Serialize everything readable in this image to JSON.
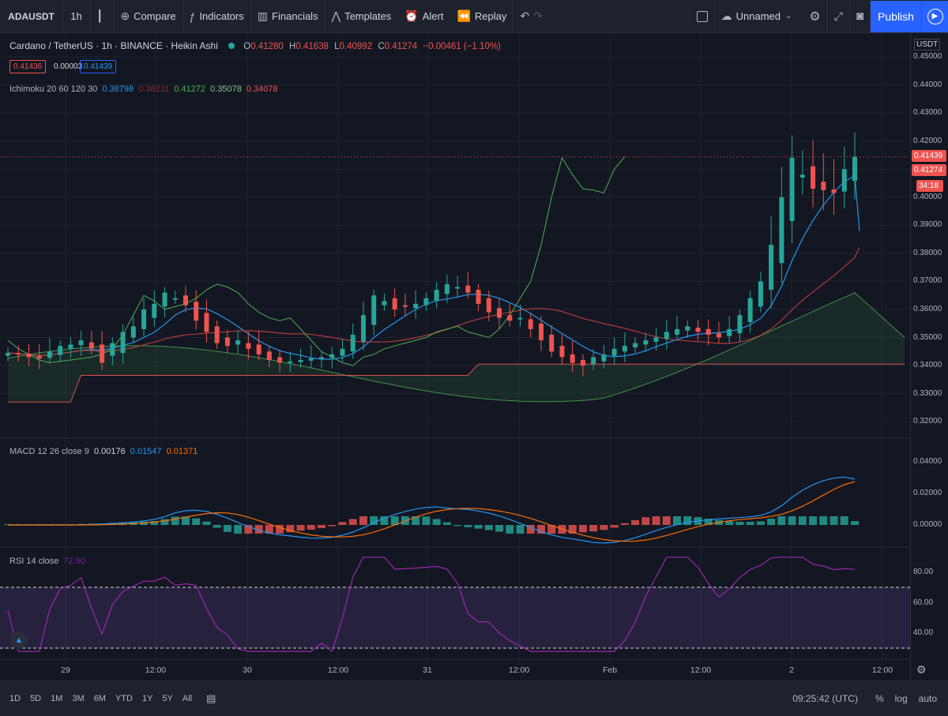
{
  "toolbar": {
    "symbol": "ADAUSDT",
    "interval": "1h",
    "compare": "Compare",
    "indicators": "Indicators",
    "financials": "Financials",
    "templates": "Templates",
    "alert": "Alert",
    "replay": "Replay",
    "layout_name": "Unnamed",
    "publish": "Publish"
  },
  "header": {
    "title": "Cardano / TetherUS · 1h · BINANCE · Heikin Ashi",
    "open_label": "O",
    "open": "0.41280",
    "high_label": "H",
    "high": "0.41638",
    "low_label": "L",
    "low": "0.40992",
    "close_label": "C",
    "close": "0.41274",
    "change": "−0.00461 (−1.10%)",
    "sell_price": "0.41436",
    "spread": "0.00003",
    "buy_price": "0.41439"
  },
  "ichimoku": {
    "label": "Ichimoku 20 60 120 30",
    "v1": "0.38798",
    "v2": "0.38211",
    "v3": "0.41272",
    "v4": "0.35078",
    "v5": "0.34078"
  },
  "macd": {
    "label": "MACD 12 26 close 9",
    "hist": "0.00176",
    "macd": "0.01547",
    "signal": "0.01371"
  },
  "rsi": {
    "label": "RSI 14 close",
    "value": "72.90"
  },
  "price_axis": {
    "currency": "USDT",
    "ticks": [
      "0.45000",
      "0.44000",
      "0.43000",
      "0.42000",
      "0.41000",
      "0.40000",
      "0.39000",
      "0.38000",
      "0.37000",
      "0.36000",
      "0.35000",
      "0.34000",
      "0.33000",
      "0.32000"
    ],
    "tag_buy": "0.41439",
    "tag_close": "0.41274",
    "tag_countdown": "34:18",
    "macd_ticks": [
      "0.04000",
      "0.02000",
      "0.00000"
    ],
    "rsi_ticks": [
      "80.00",
      "60.00",
      "40.00"
    ]
  },
  "time_axis": [
    "29",
    "12:00",
    "30",
    "12:00",
    "31",
    "12:00",
    "Feb",
    "12:00",
    "2",
    "12:00"
  ],
  "bottom": {
    "ranges": [
      "1D",
      "5D",
      "1M",
      "3M",
      "6M",
      "YTD",
      "1Y",
      "5Y",
      "All"
    ],
    "clock": "09:25:42 (UTC)",
    "percent": "%",
    "log": "log",
    "auto": "auto"
  },
  "colors": {
    "up": "#26a69a",
    "down": "#ef5350",
    "tenkan": "#2196f3",
    "kijun": "#ef5350",
    "lagging": "#4caf50",
    "macd_line": "#2196f3",
    "signal_line": "#ff6d00",
    "rsi": "#9c27b0",
    "accent": "#2962ff"
  },
  "chart_data": {
    "type": "candlestick",
    "symbol": "ADAUSDT",
    "timeframe": "1h",
    "ylim": [
      0.32,
      0.45
    ],
    "candles_close": [
      0.3445,
      0.344,
      0.343,
      0.3425,
      0.345,
      0.347,
      0.3475,
      0.349,
      0.346,
      0.341,
      0.348,
      0.352,
      0.354,
      0.36,
      0.362,
      0.366,
      0.364,
      0.3615,
      0.356,
      0.352,
      0.348,
      0.347,
      0.349,
      0.346,
      0.344,
      0.342,
      0.341,
      0.3415,
      0.342,
      0.3425,
      0.343,
      0.344,
      0.346,
      0.351,
      0.358,
      0.365,
      0.363,
      0.36,
      0.361,
      0.362,
      0.364,
      0.367,
      0.369,
      0.368,
      0.366,
      0.362,
      0.359,
      0.357,
      0.356,
      0.357,
      0.353,
      0.349,
      0.345,
      0.343,
      0.341,
      0.34,
      0.343,
      0.344,
      0.346,
      0.347,
      0.348,
      0.349,
      0.35,
      0.352,
      0.353,
      0.354,
      0.352,
      0.351,
      0.35,
      0.353,
      0.358,
      0.364,
      0.37,
      0.383,
      0.4,
      0.414,
      0.408,
      0.403,
      0.4025,
      0.4015,
      0.41,
      0.4144
    ]
  }
}
